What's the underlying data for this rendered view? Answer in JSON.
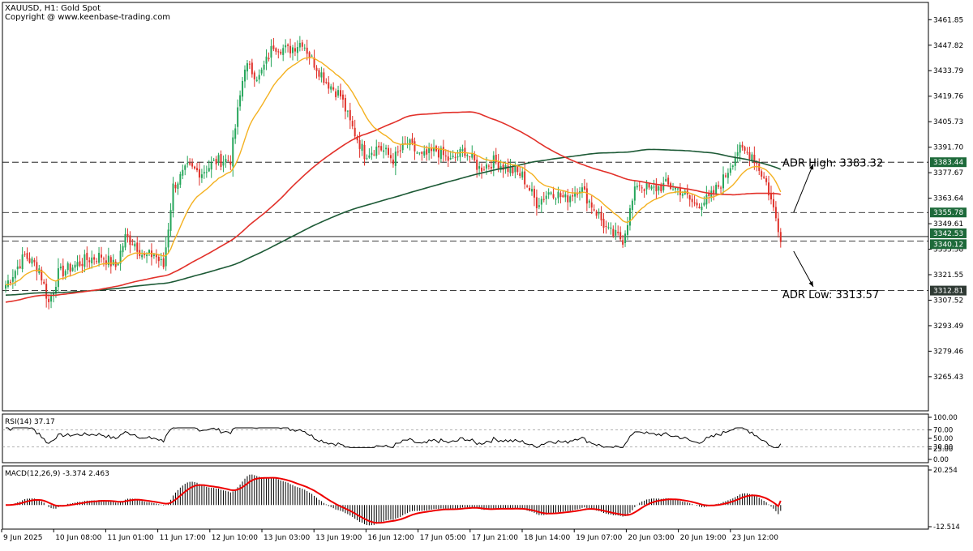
{
  "header": {
    "symbol_line": "XAUUSD, H1:  Gold Spot",
    "copyright": "Copyright @ www.keenbase-trading.com"
  },
  "colors": {
    "bull": "#26a65b",
    "bear": "#e0322b",
    "ma_fast": "#f4b120",
    "ma_mid": "#e2312a",
    "ma_slow": "#1d5a36",
    "level_line": "#1d6a3a",
    "label_bg": "#1d6a3a"
  },
  "chart_data": [
    {
      "type": "candlestick",
      "title": "XAUUSD, H1",
      "ylim": [
        3252,
        3466
      ],
      "y_ticks": [
        "3461.85",
        "3447.82",
        "3433.79",
        "3419.76",
        "3405.73",
        "3391.70",
        "3377.67",
        "3363.64",
        "3349.61",
        "3335.58",
        "3321.55",
        "3307.52",
        "3293.49",
        "3279.46",
        "3265.43"
      ],
      "x_ticks": [
        "9 Jun 2025",
        "10 Jun 08:00",
        "11 Jun 01:00",
        "11 Jun 17:00",
        "12 Jun 10:00",
        "13 Jun 03:00",
        "13 Jun 19:00",
        "16 Jun 12:00",
        "17 Jun 05:00",
        "17 Jun 21:00",
        "18 Jun 14:00",
        "19 Jun 07:00",
        "20 Jun 03:00",
        "20 Jun 19:00",
        "23 Jun 12:00"
      ],
      "close_anchors": [
        [
          0,
          3316
        ],
        [
          8,
          3332
        ],
        [
          14,
          3325
        ],
        [
          18,
          3306
        ],
        [
          22,
          3322
        ],
        [
          28,
          3326
        ],
        [
          34,
          3330
        ],
        [
          40,
          3332
        ],
        [
          46,
          3326
        ],
        [
          50,
          3342
        ],
        [
          54,
          3339
        ],
        [
          58,
          3331
        ],
        [
          62,
          3333
        ],
        [
          66,
          3326
        ],
        [
          70,
          3370
        ],
        [
          76,
          3380
        ],
        [
          82,
          3378
        ],
        [
          88,
          3384
        ],
        [
          94,
          3385
        ],
        [
          100,
          3437
        ],
        [
          106,
          3430
        ],
        [
          112,
          3448
        ],
        [
          118,
          3445
        ],
        [
          124,
          3450
        ],
        [
          128,
          3440
        ],
        [
          134,
          3428
        ],
        [
          140,
          3420
        ],
        [
          144,
          3405
        ],
        [
          150,
          3388
        ],
        [
          156,
          3392
        ],
        [
          162,
          3385
        ],
        [
          168,
          3394
        ],
        [
          174,
          3386
        ],
        [
          180,
          3390
        ],
        [
          186,
          3384
        ],
        [
          192,
          3390
        ],
        [
          198,
          3380
        ],
        [
          204,
          3384
        ],
        [
          210,
          3380
        ],
        [
          216,
          3376
        ],
        [
          222,
          3361
        ],
        [
          228,
          3368
        ],
        [
          234,
          3363
        ],
        [
          240,
          3370
        ],
        [
          246,
          3358
        ],
        [
          252,
          3345
        ],
        [
          258,
          3341
        ],
        [
          264,
          3372
        ],
        [
          270,
          3368
        ],
        [
          276,
          3371
        ],
        [
          282,
          3368
        ],
        [
          288,
          3360
        ],
        [
          294,
          3363
        ],
        [
          300,
          3374
        ],
        [
          306,
          3390
        ],
        [
          312,
          3388
        ],
        [
          318,
          3372
        ],
        [
          324,
          3343
        ]
      ],
      "ema_fast_period": 20,
      "sma_mid_period": 100,
      "sma_slow_period": 200,
      "price_levels": [
        {
          "price": 3383.44,
          "label": "3383.44",
          "style": "dashed"
        },
        {
          "price": 3355.78,
          "label": "3355.78",
          "style": "dashed"
        },
        {
          "price": 3342.53,
          "label": "3342.53",
          "style": "solid"
        },
        {
          "price": 3340.12,
          "label": "3340.12",
          "style": "dashed"
        },
        {
          "price": 3312.81,
          "label": "3312.81",
          "style": "dashed"
        }
      ],
      "annotations": [
        {
          "text": "ADR High: 3383.32",
          "price": 3383.32
        },
        {
          "text": "ADR Low: 3313.57",
          "price": 3313.57
        }
      ]
    },
    {
      "type": "line",
      "title": "RSI(14) 37.17",
      "ylim": [
        0,
        100
      ],
      "y_ticks": [
        "100.00",
        "70.00",
        "50.00",
        "30.00",
        "25.00",
        "0.00"
      ],
      "guide_levels": [
        70,
        30
      ],
      "last_value": 37.17
    },
    {
      "type": "histogram",
      "title": "MACD(12,26,9) -3.374 2.463",
      "ylim": [
        -12.514,
        20.254
      ],
      "y_ticks": [
        "20.254",
        "-12.514"
      ],
      "macd_last": -3.374,
      "signal_last": 2.463
    }
  ]
}
